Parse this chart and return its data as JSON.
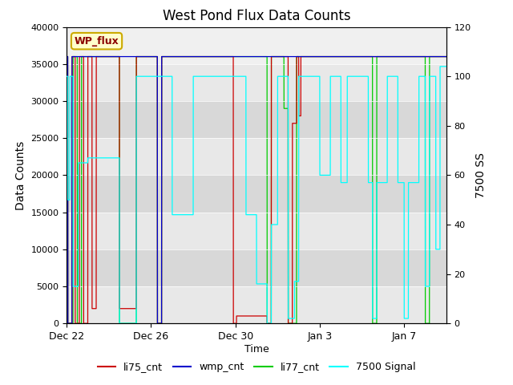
{
  "title": "West Pond Flux Data Counts",
  "ylabel_left": "Data Counts",
  "ylabel_right": "7500 SS",
  "xlabel": "Time",
  "ylim_left": [
    0,
    40000
  ],
  "ylim_right": [
    0,
    120
  ],
  "annotation_text": "WP_flux",
  "bg_color": "#d8d8d8",
  "bg_color2": "#e8e8e8",
  "legend_entries": [
    "li75_cnt",
    "wmp_cnt",
    "li77_cnt",
    "7500 Signal"
  ],
  "colors": {
    "li75": "#cc0000",
    "wmp": "#0000cc",
    "li77": "#00cc00",
    "signal": "cyan"
  },
  "x_tick_labels": [
    "Dec 22",
    "Dec 26",
    "Dec 30",
    "Jan 3",
    "Jan 7"
  ],
  "x_tick_positions": [
    0,
    4,
    8,
    12,
    16
  ],
  "xlim": [
    0,
    18
  ]
}
